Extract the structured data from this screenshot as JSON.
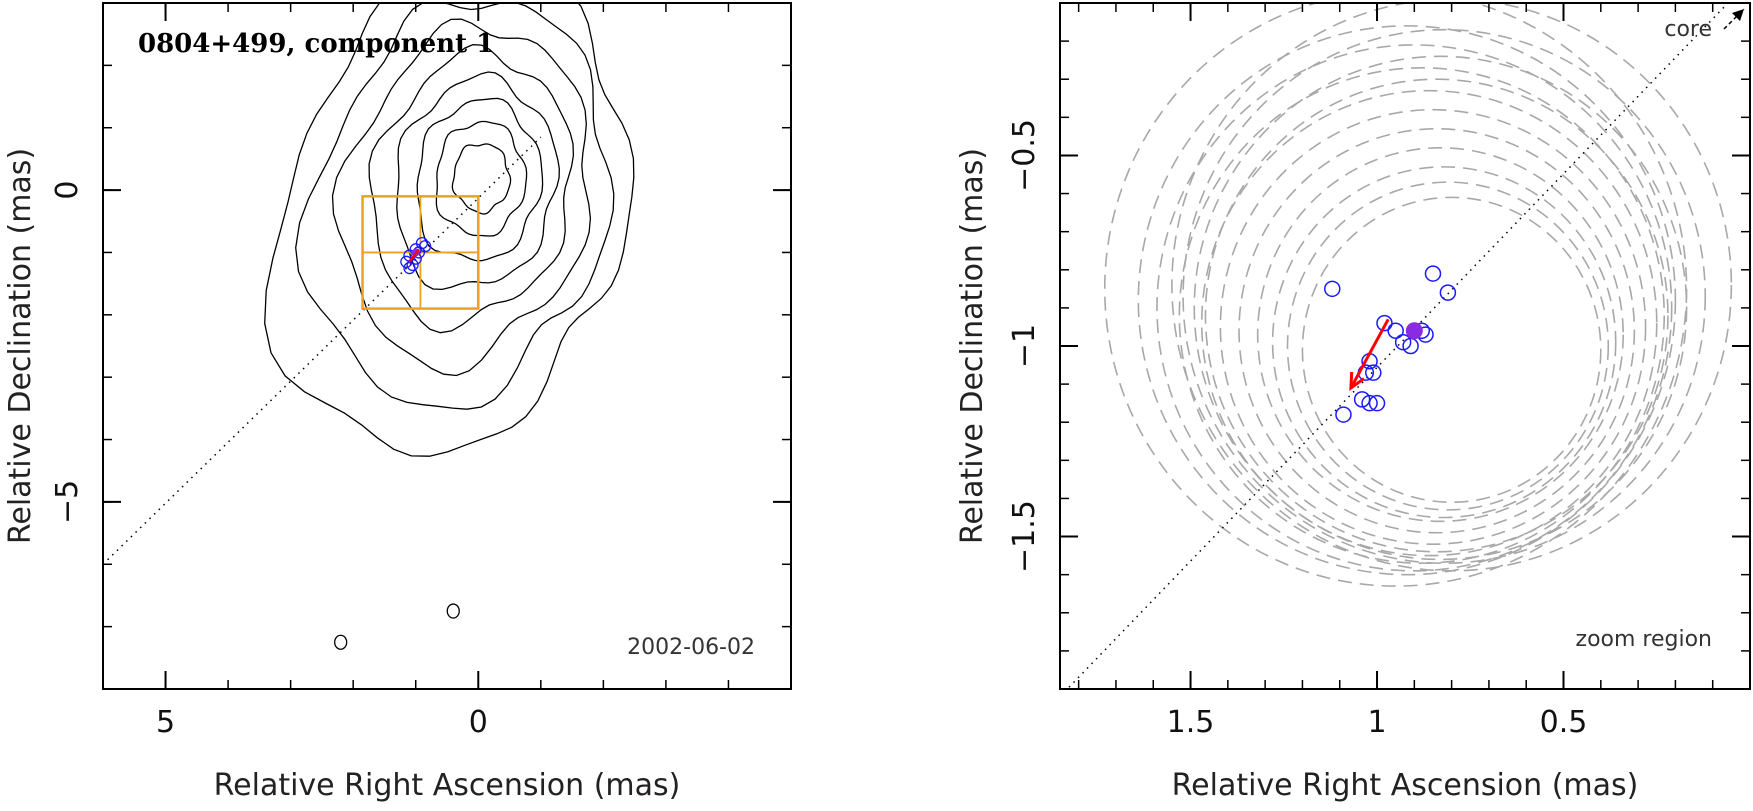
{
  "chart_data": [
    {
      "type": "contour",
      "title": "0804+499, component 1",
      "annotation": "2002-06-02",
      "xlabel": "Relative Right Ascension (mas)",
      "ylabel": "Relative Declination (mas)",
      "xlim": [
        6,
        -5
      ],
      "ylim": [
        -8,
        3
      ],
      "xticks": [
        5,
        0
      ],
      "xtick_labels": [
        "5",
        "0"
      ],
      "yticks": [
        0,
        -5
      ],
      "ytick_labels": [
        "0",
        "−5"
      ],
      "contours": {
        "center": [
          -0.05,
          0.2
        ],
        "levels": [
          {
            "rx": 0.45,
            "ry": 0.55
          },
          {
            "rx": 0.7,
            "ry": 0.9
          },
          {
            "rx": 0.95,
            "ry": 1.25
          },
          {
            "rx": 1.2,
            "ry": 1.6
          },
          {
            "rx": 1.45,
            "ry": 2.0
          },
          {
            "rx": 1.75,
            "ry": 2.45
          },
          {
            "rx": 2.05,
            "ry": 2.9
          },
          {
            "rx": 2.35,
            "ry": 3.4
          }
        ]
      },
      "isolated_contours": [
        {
          "x": 2.2,
          "y": -7.25
        },
        {
          "x": 0.4,
          "y": -6.75
        }
      ],
      "zoom_box": {
        "x0": 1.85,
        "x1": 0.0,
        "y0": -0.1,
        "y1": -1.9,
        "divisions": 2
      },
      "jet_axis": {
        "x": [
          6,
          -1
        ],
        "y": [
          -6,
          0.85
        ]
      },
      "component_positions": {
        "x": [
          1.1,
          1.0,
          0.9,
          1.15,
          0.95,
          1.05,
          0.85,
          1.0,
          1.1
        ],
        "y": [
          -1.05,
          -0.95,
          -0.85,
          -1.15,
          -1.0,
          -1.2,
          -0.9,
          -1.1,
          -1.25
        ]
      },
      "mean_position": {
        "x": 1.0,
        "y": -1.0
      },
      "motion_vector": {
        "from": [
          0.95,
          -0.95
        ],
        "to": [
          1.1,
          -1.15
        ]
      }
    },
    {
      "type": "scatter",
      "title": "",
      "annotation": "zoom region",
      "corner_label": "core",
      "xlabel": "Relative Right Ascension (mas)",
      "ylabel": "Relative Declination (mas)",
      "xlim": [
        1.85,
        0.0
      ],
      "ylim": [
        -1.9,
        -0.1
      ],
      "xticks": [
        1.5,
        1.0,
        0.5
      ],
      "xtick_labels": [
        "1.5",
        "1",
        "0.5"
      ],
      "yticks": [
        -0.5,
        -1.0,
        -1.5
      ],
      "ytick_labels": [
        "−0.5",
        "−1",
        "−1.5"
      ],
      "component_positions": {
        "x": [
          1.12,
          0.85,
          0.81,
          0.98,
          0.95,
          0.93,
          0.88,
          0.87,
          0.91,
          1.02,
          1.01,
          1.03,
          1.04,
          1.02,
          1.09,
          1.0
        ],
        "y": [
          -0.85,
          -0.81,
          -0.86,
          -0.94,
          -0.96,
          -0.99,
          -0.96,
          -0.97,
          -1.0,
          -1.04,
          -1.07,
          -1.07,
          -1.14,
          -1.15,
          -1.18,
          -1.15
        ]
      },
      "mean_position": {
        "x": 0.9,
        "y": -0.96
      },
      "motion_vector": {
        "from": [
          0.97,
          -0.93
        ],
        "to": [
          1.07,
          -1.11
        ]
      },
      "jet_axis": {
        "x": [
          1.85,
          0.0
        ],
        "y": [
          -1.92,
          -0.04
        ]
      },
      "error_circles": [
        {
          "x": 0.95,
          "y": -0.85,
          "r": 0.78
        },
        {
          "x": 0.92,
          "y": -0.88,
          "r": 0.72
        },
        {
          "x": 0.9,
          "y": -0.9,
          "r": 0.69
        },
        {
          "x": 0.88,
          "y": -0.92,
          "r": 0.65
        },
        {
          "x": 0.86,
          "y": -0.94,
          "r": 0.61
        },
        {
          "x": 0.85,
          "y": -0.95,
          "r": 0.57
        },
        {
          "x": 0.84,
          "y": -0.96,
          "r": 0.53
        },
        {
          "x": 0.83,
          "y": -0.97,
          "r": 0.49
        },
        {
          "x": 0.82,
          "y": -0.99,
          "r": 0.46
        },
        {
          "x": 0.81,
          "y": -1.0,
          "r": 0.43
        },
        {
          "x": 0.8,
          "y": -1.01,
          "r": 0.4
        },
        {
          "x": 0.8,
          "y": -0.84,
          "r": 0.75
        },
        {
          "x": 0.82,
          "y": -0.87,
          "r": 0.7
        },
        {
          "x": 0.83,
          "y": -0.9,
          "r": 0.66
        },
        {
          "x": 0.84,
          "y": -0.92,
          "r": 0.62
        }
      ]
    }
  ]
}
